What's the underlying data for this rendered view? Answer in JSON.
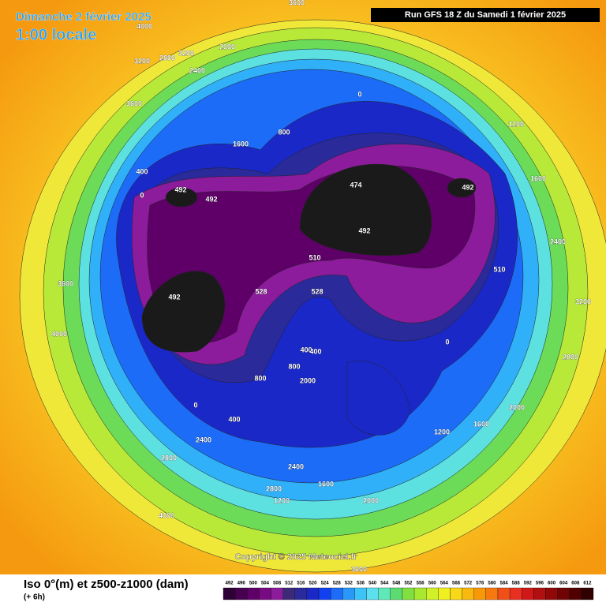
{
  "header": {
    "date": "Dimanche 2 février 2025",
    "time": "1:00 locale",
    "run": "Run GFS 18 Z du Samedi 1 février 2025"
  },
  "footer": {
    "title": "Iso 0°(m) et z500-z1000 (dam)",
    "step": "(+ 6h)",
    "copyright": "Copyright © 2025 Meteociel.fr"
  },
  "legend": {
    "values": [
      492,
      496,
      500,
      504,
      508,
      512,
      516,
      520,
      524,
      528,
      532,
      536,
      540,
      544,
      548,
      552,
      556,
      560,
      564,
      568,
      572,
      576,
      580,
      584,
      588,
      592,
      596,
      600,
      604,
      608,
      612
    ],
    "colors": [
      "#2d0036",
      "#46004f",
      "#5f0068",
      "#780a82",
      "#8c1c9c",
      "#3c2a78",
      "#2a2a9a",
      "#1a28c8",
      "#1040f0",
      "#1c6cf8",
      "#2a98f8",
      "#3cc4f8",
      "#5ce0f0",
      "#60e8b8",
      "#5cdc70",
      "#80e040",
      "#a8e830",
      "#d0f028",
      "#f0f020",
      "#f8d818",
      "#f8b810",
      "#f89808",
      "#f87810",
      "#f05018",
      "#e83020",
      "#d01818",
      "#b01010",
      "#900808",
      "#700404",
      "#500000",
      "#300000"
    ]
  },
  "map_labels": [
    "3600",
    "4000",
    "3200",
    "2800",
    "2400",
    "2000",
    "3200",
    "3600",
    "1600",
    "800",
    "0",
    "400",
    "0",
    "474",
    "492",
    "492",
    "492",
    "492",
    "510",
    "510",
    "528",
    "528",
    "492",
    "400",
    "0",
    "1200",
    "1600",
    "2400",
    "3200",
    "2800",
    "2000",
    "1200",
    "1600",
    "800",
    "400",
    "0",
    "400",
    "800",
    "2000",
    "2400",
    "2800",
    "4000",
    "3600",
    "1600",
    "2000",
    "1200",
    "3600",
    "4000",
    "2400",
    "2800"
  ]
}
